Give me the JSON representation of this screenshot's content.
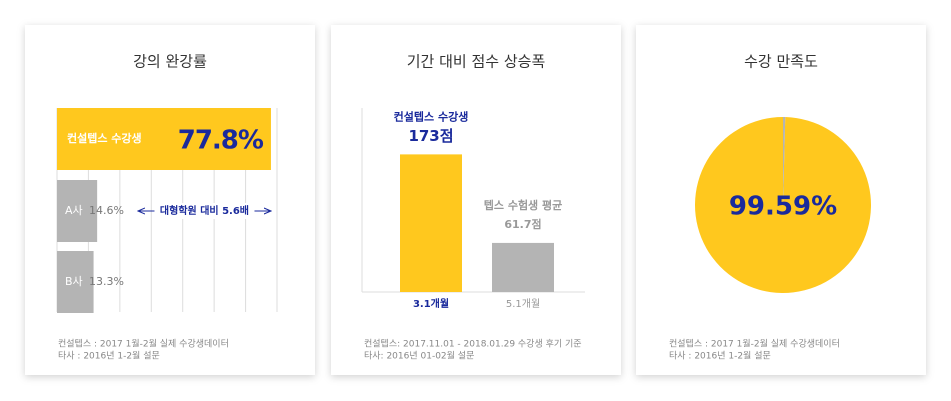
{
  "chart_data": [
    {
      "type": "hbar",
      "title": "강의 완강률",
      "categories": [
        "컨설텝스 수강생",
        "A사",
        "B사"
      ],
      "values": [
        77.8,
        14.6,
        13.3
      ],
      "value_labels": [
        "77.8%",
        "14.6%",
        "13.3%"
      ],
      "colors": [
        "#ffc81e",
        "#b4b4b4",
        "#b4b4b4"
      ],
      "xlim": [
        0,
        80
      ],
      "grid": true,
      "annotation": "대형학원 대비 5.6배",
      "notes": [
        "컨설텝스 : 2017 1월-2월 실제 수강생데이터",
        "타사 : 2016년 1-2월 설문"
      ]
    },
    {
      "type": "bar",
      "title": "기간 대비 점수 상승폭",
      "categories": [
        "3.1개월",
        "5.1개월"
      ],
      "series_names": [
        "컨설텝스 수강생",
        "텝스 수험생 평균"
      ],
      "values": [
        173,
        61.7
      ],
      "value_labels": [
        "173점",
        "61.7점"
      ],
      "colors": [
        "#ffc81e",
        "#b4b4b4"
      ],
      "ylim": [
        0,
        220
      ],
      "notes": [
        "컨설텝스: 2017.11.01 - 2018.01.29 수강생 후기 기준",
        "타사: 2016년 01-02월 설문"
      ]
    },
    {
      "type": "pie",
      "title": "수강 만족도",
      "values": [
        99.59,
        0.41
      ],
      "value_labels": [
        "99.59%",
        null
      ],
      "colors": [
        "#ffc81e",
        "#b4b4b4"
      ],
      "notes": [
        "컨설텝스 : 2017 1월-2월 실제 수강생데이터",
        "타사 : 2016년 1-2월 설문"
      ]
    }
  ]
}
